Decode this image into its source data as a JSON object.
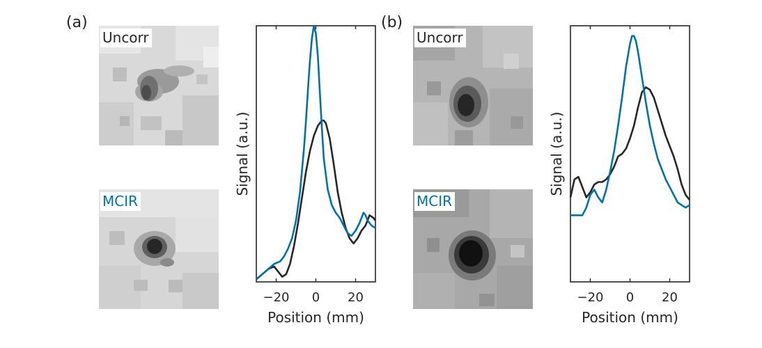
{
  "panels": [
    {
      "label": "(a)",
      "images": {
        "top_label": "Uncorr",
        "bottom_label": "MCIR"
      }
    },
    {
      "label": "(b)",
      "images": {
        "top_label": "Uncorr",
        "bottom_label": "MCIR"
      }
    }
  ],
  "colors": {
    "uncorr": "#262626",
    "mcir": "#0072aa"
  },
  "chart_data": [
    {
      "type": "line",
      "xlabel": "Position (mm)",
      "ylabel": "Signal (a.u.)",
      "xlim": [
        -30,
        30
      ],
      "ylim": [
        0,
        1
      ],
      "xticks": [
        -20,
        0,
        20
      ],
      "grid": false,
      "series": [
        {
          "name": "Uncorr",
          "color": "#262626",
          "x": [
            -30,
            -27,
            -24,
            -21,
            -19,
            -17,
            -15,
            -13,
            -11,
            -9,
            -7,
            -5,
            -3,
            -1,
            1,
            3,
            4,
            5,
            7,
            9,
            11,
            13,
            15,
            17,
            19,
            21,
            23,
            25,
            27,
            29,
            30
          ],
          "y": [
            0.01,
            0.03,
            0.05,
            0.06,
            0.04,
            0.02,
            0.03,
            0.07,
            0.14,
            0.23,
            0.33,
            0.43,
            0.51,
            0.57,
            0.61,
            0.63,
            0.63,
            0.62,
            0.56,
            0.46,
            0.35,
            0.27,
            0.21,
            0.17,
            0.15,
            0.17,
            0.2,
            0.22,
            0.26,
            0.25,
            0.24
          ]
        },
        {
          "name": "MCIR",
          "color": "#0072aa",
          "x": [
            -30,
            -27,
            -24,
            -21,
            -18,
            -16,
            -14,
            -12,
            -10,
            -8,
            -6,
            -5,
            -4,
            -3,
            -2,
            -1,
            0,
            1,
            2,
            3,
            4,
            6,
            8,
            10,
            12,
            14,
            16,
            18,
            20,
            22,
            24,
            25,
            26,
            28,
            30
          ],
          "y": [
            0.01,
            0.03,
            0.05,
            0.07,
            0.08,
            0.1,
            0.13,
            0.17,
            0.24,
            0.35,
            0.52,
            0.63,
            0.75,
            0.86,
            0.95,
            1.0,
            0.97,
            0.88,
            0.74,
            0.6,
            0.48,
            0.36,
            0.3,
            0.27,
            0.25,
            0.22,
            0.19,
            0.18,
            0.2,
            0.23,
            0.27,
            0.26,
            0.24,
            0.22,
            0.21
          ]
        }
      ]
    },
    {
      "type": "line",
      "xlabel": "Position (mm)",
      "ylabel": "Signal (a.u.)",
      "xlim": [
        -30,
        30
      ],
      "ylim": [
        0,
        1
      ],
      "xticks": [
        -20,
        0,
        20
      ],
      "grid": false,
      "series": [
        {
          "name": "Uncorr",
          "color": "#262626",
          "x": [
            -30,
            -28,
            -26,
            -24,
            -22,
            -20,
            -18,
            -16,
            -14,
            -12,
            -10,
            -8,
            -6,
            -4,
            -2,
            0,
            2,
            4,
            6,
            8,
            10,
            12,
            14,
            16,
            18,
            20,
            22,
            24,
            26,
            28,
            30
          ],
          "y": [
            0.33,
            0.4,
            0.41,
            0.37,
            0.33,
            0.35,
            0.38,
            0.39,
            0.39,
            0.4,
            0.42,
            0.45,
            0.49,
            0.5,
            0.52,
            0.56,
            0.61,
            0.68,
            0.74,
            0.76,
            0.75,
            0.72,
            0.67,
            0.62,
            0.57,
            0.53,
            0.49,
            0.44,
            0.38,
            0.34,
            0.32
          ]
        },
        {
          "name": "MCIR",
          "color": "#0072aa",
          "x": [
            -30,
            -28,
            -26,
            -24,
            -22,
            -20,
            -18,
            -16,
            -14,
            -12,
            -10,
            -8,
            -6,
            -4,
            -2,
            0,
            1,
            2,
            3,
            4,
            6,
            8,
            10,
            12,
            14,
            16,
            18,
            20,
            22,
            24,
            26,
            28,
            30
          ],
          "y": [
            0.26,
            0.26,
            0.26,
            0.26,
            0.29,
            0.34,
            0.36,
            0.33,
            0.31,
            0.36,
            0.43,
            0.51,
            0.61,
            0.72,
            0.84,
            0.93,
            0.96,
            0.96,
            0.94,
            0.9,
            0.8,
            0.7,
            0.61,
            0.54,
            0.48,
            0.44,
            0.4,
            0.37,
            0.34,
            0.31,
            0.3,
            0.29,
            0.3
          ]
        }
      ]
    }
  ]
}
